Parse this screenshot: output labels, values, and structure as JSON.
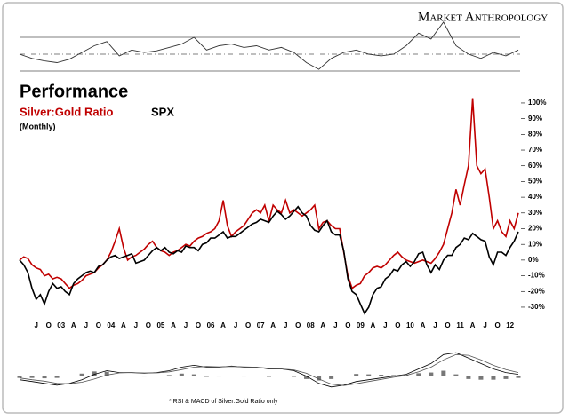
{
  "logo": "Market Anthropology",
  "chart_data": [
    {
      "type": "line",
      "ylim": [
        25,
        80
      ],
      "hlines": [
        70,
        50,
        30
      ],
      "step": 3,
      "color": "#333333",
      "values": [
        50,
        45,
        42,
        40,
        44,
        52,
        60,
        65,
        48,
        55,
        52,
        54,
        58,
        62,
        70,
        55,
        60,
        62,
        58,
        60,
        55,
        58,
        52,
        40,
        32,
        45,
        52,
        55,
        50,
        48,
        50,
        60,
        75,
        68,
        88,
        60,
        50,
        45,
        52,
        48,
        55
      ]
    },
    {
      "type": "line",
      "title": "Performance",
      "subtitle": "(Monthly)",
      "ylim": [
        -35,
        108
      ],
      "step": 1,
      "yticks": [
        {
          "value": 100,
          "label": "100%"
        },
        {
          "value": 90,
          "label": "90%"
        },
        {
          "value": 80,
          "label": "80%"
        },
        {
          "value": 70,
          "label": "70%"
        },
        {
          "value": 60,
          "label": "60%"
        },
        {
          "value": 50,
          "label": "50%"
        },
        {
          "value": 40,
          "label": "40%"
        },
        {
          "value": 30,
          "label": "30%"
        },
        {
          "value": 20,
          "label": "20%"
        },
        {
          "value": 10,
          "label": "10%"
        },
        {
          "value": 0,
          "label": "0%"
        },
        {
          "value": -10,
          "label": "-10%"
        },
        {
          "value": -20,
          "label": "-20%"
        },
        {
          "value": -30,
          "label": "-30%"
        }
      ],
      "categories": [
        null,
        null,
        null,
        null,
        "J",
        null,
        null,
        "O",
        null,
        null,
        "03",
        null,
        null,
        "A",
        null,
        null,
        "J",
        null,
        null,
        "O",
        null,
        null,
        "04",
        null,
        null,
        "A",
        null,
        null,
        "J",
        null,
        null,
        "O",
        null,
        null,
        "05",
        null,
        null,
        "A",
        null,
        null,
        "J",
        null,
        null,
        "O",
        null,
        null,
        "06",
        null,
        null,
        "A",
        null,
        null,
        "J",
        null,
        null,
        "O",
        null,
        null,
        "07",
        null,
        null,
        "A",
        null,
        null,
        "J",
        null,
        null,
        "O",
        null,
        null,
        "08",
        null,
        null,
        "A",
        null,
        null,
        "J",
        null,
        null,
        "O",
        null,
        null,
        "09",
        null,
        null,
        "A",
        null,
        null,
        "J",
        null,
        null,
        "O",
        null,
        null,
        "10",
        null,
        null,
        "A",
        null,
        null,
        "J",
        null,
        null,
        "O",
        null,
        null,
        "11",
        null,
        null,
        "A",
        null,
        null,
        "J",
        null,
        null,
        "O",
        null,
        null,
        "12",
        null,
        null
      ],
      "series": [
        {
          "name": "Silver:Gold Ratio",
          "color": "#c00000",
          "values": [
            0,
            2,
            1,
            -3,
            -5,
            -6,
            -10,
            -9,
            -12,
            -11,
            -12,
            -15,
            -18,
            -16,
            -15,
            -13,
            -10,
            -9,
            -8,
            -5,
            -3,
            0,
            5,
            12,
            20,
            8,
            0,
            2,
            3,
            5,
            7,
            10,
            12,
            8,
            6,
            5,
            3,
            5,
            6,
            8,
            10,
            9,
            12,
            14,
            15,
            17,
            18,
            20,
            25,
            38,
            22,
            15,
            18,
            20,
            22,
            26,
            30,
            32,
            30,
            35,
            25,
            35,
            32,
            30,
            38,
            30,
            32,
            30,
            28,
            30,
            32,
            35,
            20,
            24,
            25,
            22,
            20,
            20,
            5,
            -10,
            -18,
            -16,
            -15,
            -10,
            -8,
            -5,
            -4,
            -5,
            -3,
            0,
            3,
            5,
            2,
            0,
            -1,
            -2,
            -1,
            0,
            -1,
            -2,
            1,
            5,
            10,
            20,
            30,
            45,
            35,
            48,
            60,
            103,
            60,
            55,
            58,
            40,
            20,
            25,
            18,
            15,
            25,
            20,
            30
          ]
        },
        {
          "name": "SPX",
          "color": "#000000",
          "values": [
            0,
            -3,
            -8,
            -18,
            -25,
            -22,
            -28,
            -20,
            -15,
            -18,
            -17,
            -20,
            -22,
            -15,
            -12,
            -10,
            -8,
            -7,
            -8,
            -4,
            -3,
            0,
            2,
            3,
            1,
            2,
            3,
            4,
            -2,
            -1,
            0,
            3,
            6,
            8,
            6,
            8,
            5,
            4,
            6,
            5,
            9,
            8,
            8,
            6,
            10,
            11,
            14,
            14,
            16,
            18,
            14,
            15,
            15,
            17,
            19,
            21,
            23,
            24,
            26,
            25,
            24,
            28,
            31,
            29,
            26,
            28,
            31,
            34,
            30,
            28,
            22,
            19,
            18,
            22,
            25,
            18,
            16,
            16,
            6,
            -12,
            -20,
            -22,
            -28,
            -34,
            -30,
            -22,
            -18,
            -17,
            -12,
            -10,
            -6,
            -7,
            -3,
            -1,
            -4,
            -1,
            4,
            5,
            -3,
            -8,
            -3,
            -6,
            0,
            3,
            3,
            8,
            10,
            14,
            13,
            17,
            15,
            13,
            12,
            2,
            -3,
            5,
            5,
            3,
            8,
            12,
            18
          ]
        }
      ]
    },
    {
      "type": "bar",
      "note": "* RSI & MACD of Silver:Gold Ratio only",
      "ylim": [
        -6,
        10
      ],
      "step": 3,
      "color": "#777777",
      "values": [
        -0.5,
        -0.5,
        -0.6,
        -0.5,
        0.1,
        0.7,
        1.3,
        1.2,
        0.1,
        0,
        -0.1,
        0.1,
        0.3,
        0.7,
        0.5,
        -0.2,
        -0.1,
        0.1,
        -0.1,
        0,
        -0.2,
        0,
        -0.2,
        -0.8,
        -1.2,
        -0.8,
        0.1,
        0.6,
        0.5,
        0.4,
        0.3,
        0.3,
        0.8,
        1,
        1.5,
        0.5,
        -0.8,
        -1,
        -1,
        -0.8,
        -0.5
      ],
      "lines": [
        {
          "color": "#000000",
          "values": [
            -1,
            -1.5,
            -2,
            -2.5,
            -2,
            -1,
            0.5,
            1.5,
            1,
            1,
            0.8,
            1,
            1.5,
            2.5,
            3,
            2.5,
            2.5,
            2.8,
            2.5,
            2.5,
            2,
            2,
            1.5,
            0,
            -2,
            -3,
            -2.5,
            -1.5,
            -1,
            -0.5,
            0,
            0.5,
            2,
            3.5,
            6,
            6.5,
            5,
            3.5,
            2,
            1,
            0.5
          ]
        },
        {
          "color": "#555555",
          "values": [
            -0.5,
            -1,
            -1.4,
            -2,
            -2.1,
            -1.7,
            -0.8,
            0.3,
            0.9,
            1,
            0.9,
            0.9,
            1.2,
            1.8,
            2.5,
            2.7,
            2.6,
            2.7,
            2.6,
            2.5,
            2.2,
            2,
            1.7,
            0.8,
            -0.8,
            -2.2,
            -2.6,
            -2.1,
            -1.5,
            -0.9,
            -0.3,
            0.2,
            1.2,
            2.5,
            4.5,
            6,
            5.8,
            4.5,
            3,
            1.8,
            1
          ]
        }
      ]
    }
  ]
}
